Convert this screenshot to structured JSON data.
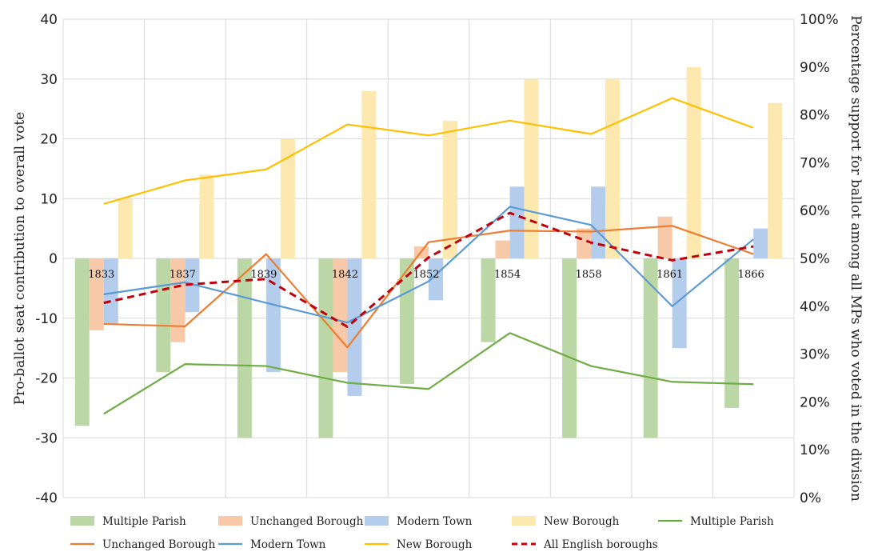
{
  "chart_data": {
    "type": "bar",
    "categories": [
      "1833",
      "1837",
      "1839",
      "1842",
      "1852",
      "1854",
      "1858",
      "1861",
      "1866"
    ],
    "ylabel": "Pro-ballot seat contribution to overall vote",
    "y2label": "Percentage support for ballot among all MPs who voted in the division",
    "ylim": [
      -40,
      40
    ],
    "y_ticks": [
      "40",
      "30",
      "20",
      "10",
      "0",
      "-10",
      "-20",
      "-30",
      "-40"
    ],
    "y2lim": [
      0,
      100
    ],
    "y2_ticks": [
      "100%",
      "90%",
      "80%",
      "70%",
      "60%",
      "50%",
      "40%",
      "30%",
      "20%",
      "10%",
      "0%"
    ],
    "grid": true,
    "legend_position": "bottom",
    "bar_series": [
      {
        "name": "Multiple Parish",
        "color": "#bcd7a6",
        "values": [
          -28,
          -19,
          -30,
          -30,
          -21,
          -14,
          -30,
          -30,
          -25
        ]
      },
      {
        "name": "Unchanged Borough",
        "color": "#f8c9a8",
        "values": [
          -12,
          -14,
          0,
          -19,
          2,
          3,
          5,
          7,
          0
        ]
      },
      {
        "name": "Modern Town",
        "color": "#b5cdec",
        "values": [
          -11,
          -9,
          -19,
          -23,
          -7,
          12,
          12,
          -15,
          5
        ]
      },
      {
        "name": "New Borough",
        "color": "#fde8b0",
        "values": [
          10,
          14,
          20,
          28,
          23,
          30,
          30,
          32,
          26
        ]
      }
    ],
    "line_series": [
      {
        "name": "Multiple Parish",
        "color": "#6fac46",
        "dashed": false,
        "values": [
          17.5,
          27.9,
          27.5,
          24.0,
          22.7,
          34.4,
          27.5,
          24.2,
          23.7
        ]
      },
      {
        "name": "Unchanged Borough",
        "color": "#ed7d31",
        "dashed": false,
        "values": [
          36.3,
          35.8,
          50.9,
          31.4,
          53.4,
          55.8,
          55.6,
          56.8,
          50.9
        ]
      },
      {
        "name": "Modern Town",
        "color": "#5b9bd5",
        "dashed": false,
        "values": [
          42.5,
          45.0,
          40.7,
          36.6,
          45.2,
          60.8,
          57.0,
          40.0,
          54.0
        ]
      },
      {
        "name": "New Borough",
        "color": "#ffc000",
        "dashed": false,
        "values": [
          61.4,
          66.3,
          68.6,
          78.0,
          75.7,
          78.8,
          76.0,
          83.5,
          77.3
        ]
      },
      {
        "name": "All English boroughs",
        "color": "#c0000c",
        "dashed": true,
        "values": [
          40.7,
          44.5,
          45.7,
          35.7,
          50.2,
          59.5,
          53.3,
          49.6,
          52.5
        ]
      }
    ]
  }
}
